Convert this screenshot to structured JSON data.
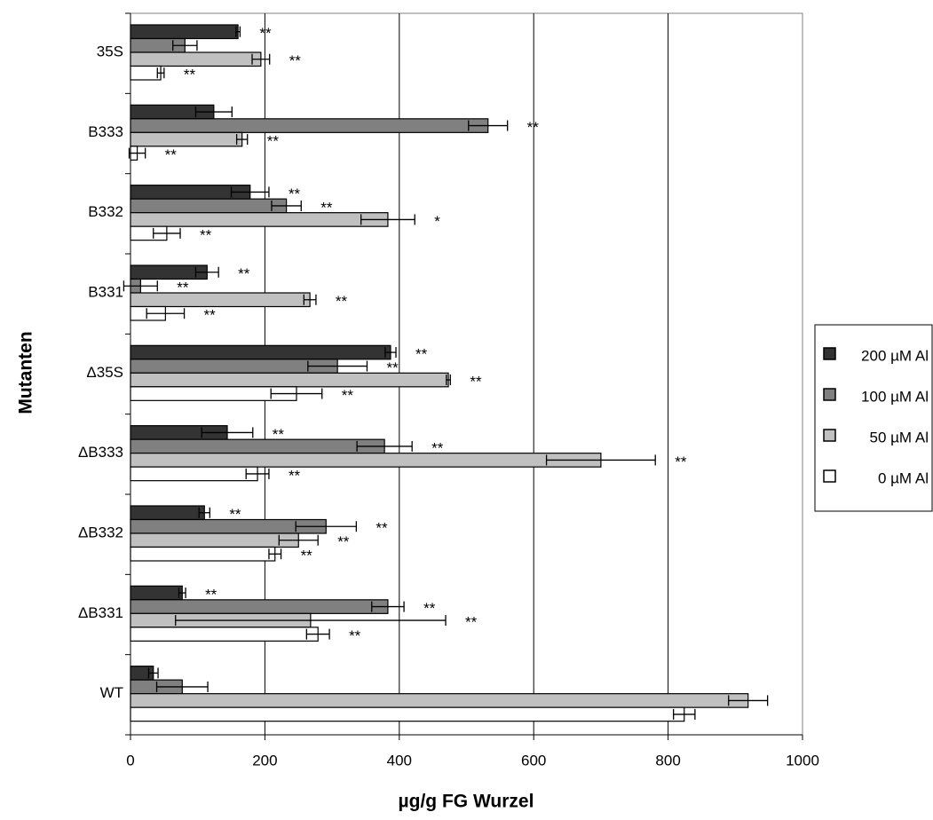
{
  "chart_data": {
    "type": "hbar",
    "x_label": "µg/g FG Wurzel",
    "y_label": "Mutanten",
    "categories": [
      "35S",
      "B333",
      "B332",
      "B331",
      "Δ35S",
      "ΔB333",
      "ΔB332",
      "ΔB331",
      "WT"
    ],
    "series": [
      {
        "name": "200 µM Al",
        "color": "#333333",
        "values": [
          160,
          124,
          178,
          114,
          387,
          144,
          110,
          77,
          34
        ],
        "errors": [
          3,
          27,
          28,
          17,
          8,
          38,
          8,
          5,
          7
        ],
        "significance": [
          "**",
          null,
          "**",
          "**",
          "**",
          "**",
          "**",
          "**",
          null
        ]
      },
      {
        "name": "100 µM Al",
        "color": "#808080",
        "values": [
          81,
          532,
          232,
          15,
          308,
          378,
          291,
          383,
          77
        ],
        "errors": [
          18,
          29,
          22,
          25,
          44,
          41,
          45,
          24,
          38
        ],
        "significance": [
          null,
          "**",
          "**",
          "**",
          "**",
          "**",
          "**",
          "**",
          null
        ]
      },
      {
        "name": "50 µM Al",
        "color": "#c0c0c0",
        "values": [
          194,
          166,
          383,
          267,
          473,
          700,
          250,
          268,
          919
        ],
        "errors": [
          13,
          8,
          40,
          9,
          3,
          81,
          29,
          201,
          29
        ],
        "significance": [
          "**",
          "**",
          "*",
          "**",
          "**",
          "**",
          "**",
          "**",
          null
        ]
      },
      {
        "name": "0 µM Al",
        "color": "#ffffff",
        "values": [
          45,
          10,
          54,
          52,
          247,
          189,
          215,
          279,
          824
        ],
        "errors": [
          5,
          12,
          20,
          28,
          38,
          17,
          9,
          17,
          16
        ],
        "significance": [
          "**",
          "**",
          "**",
          "**",
          "**",
          "**",
          "**",
          "**",
          null
        ]
      }
    ],
    "xlim": [
      0,
      1000
    ],
    "xticks": [
      0,
      200,
      400,
      600,
      800,
      1000
    ],
    "grid": true
  }
}
